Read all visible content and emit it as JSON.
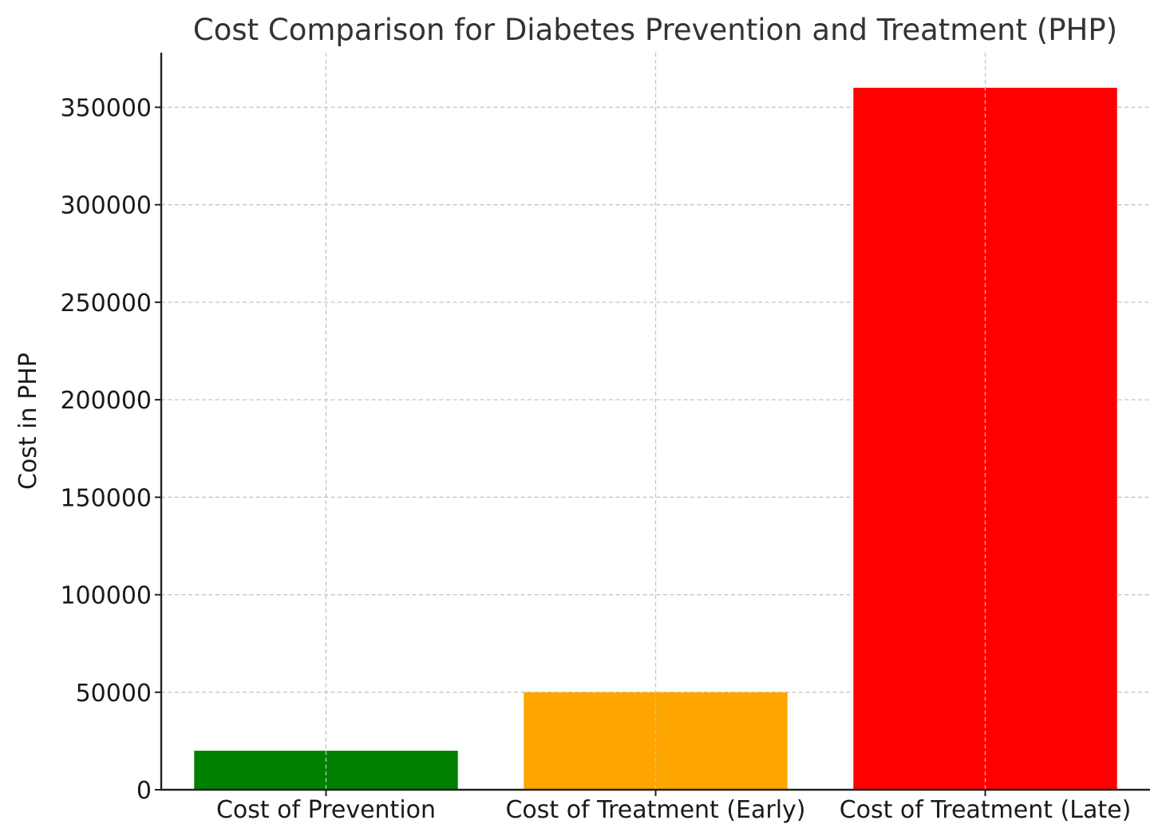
{
  "chart_data": {
    "type": "bar",
    "title": "Cost Comparison for Diabetes Prevention and Treatment (PHP)",
    "xlabel": "",
    "ylabel": "Cost in PHP",
    "categories": [
      "Cost of Prevention",
      "Cost of Treatment (Early)",
      "Cost of Treatment (Late)"
    ],
    "values": [
      20000,
      50000,
      360000
    ],
    "colors": [
      "#008000",
      "#FFA500",
      "#FF0000"
    ],
    "ylim": [
      0,
      378000
    ],
    "yticks": [
      0,
      50000,
      100000,
      150000,
      200000,
      250000,
      300000,
      350000
    ],
    "ytick_labels": [
      "0",
      "50000",
      "100000",
      "150000",
      "200000",
      "250000",
      "300000",
      "350000"
    ],
    "grid": true,
    "legend": "none"
  }
}
